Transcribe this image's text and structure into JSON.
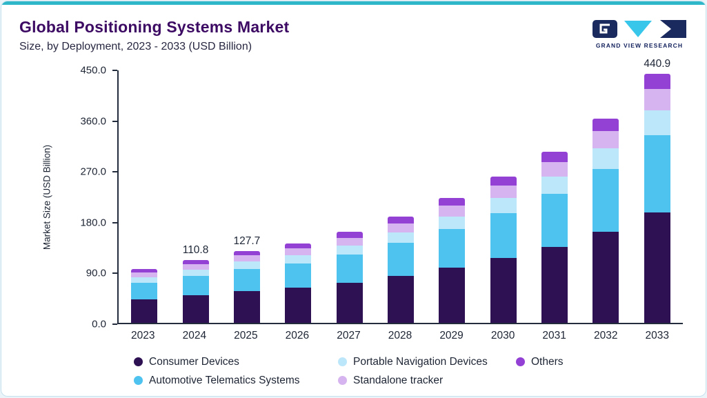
{
  "header": {
    "title": "Global Positioning Systems Market",
    "subtitle": "Size, by Deployment, 2023 - 2033 (USD Billion)"
  },
  "logo": {
    "text": "GRAND VIEW RESEARCH",
    "navy": "#1b2a5e",
    "cyan": "#38c6ea"
  },
  "chart_data": {
    "type": "bar",
    "stacked": true,
    "title": "Global Positioning Systems Market Size, by Deployment, 2023 - 2033 (USD Billion)",
    "xlabel": "",
    "ylabel": "Market Size (USD Billion)",
    "ylim": [
      0,
      450
    ],
    "grid": false,
    "legend_position": "bottom",
    "yticks": [
      0,
      90,
      180,
      270,
      360,
      450
    ],
    "ytick_labels": [
      "0.0",
      "90.0",
      "180.0",
      "270.0",
      "360.0",
      "450.0"
    ],
    "categories": [
      "2023",
      "2024",
      "2025",
      "2026",
      "2027",
      "2028",
      "2029",
      "2030",
      "2031",
      "2032",
      "2033"
    ],
    "series": [
      {
        "name": "Consumer Devices",
        "color": "#2e1152",
        "values": [
          42.0,
          48.5,
          56.0,
          62.0,
          71.0,
          83.0,
          98.0,
          115.0,
          135.0,
          161.0,
          196.0
        ]
      },
      {
        "name": "Automotive Telematics Systems",
        "color": "#4ec3f0",
        "values": [
          29.5,
          34.5,
          39.5,
          43.5,
          50.0,
          58.5,
          68.5,
          80.0,
          93.5,
          112.0,
          136.5
        ]
      },
      {
        "name": "Portable Navigation Devices",
        "color": "#bce6f9",
        "values": [
          9.5,
          11.0,
          13.0,
          14.0,
          16.0,
          19.0,
          22.0,
          26.0,
          30.5,
          36.5,
          44.5
        ]
      },
      {
        "name": "Standalone tracker",
        "color": "#d6b4ef",
        "values": [
          8.5,
          9.8,
          11.2,
          12.5,
          14.0,
          16.0,
          19.0,
          22.5,
          26.0,
          31.0,
          37.9
        ]
      },
      {
        "name": "Others",
        "color": "#9340d5",
        "values": [
          6.5,
          7.0,
          8.0,
          8.5,
          10.0,
          11.5,
          13.5,
          15.5,
          18.0,
          21.5,
          26.0
        ]
      }
    ],
    "totals": [
      96.0,
      110.8,
      127.7,
      140.5,
      161.0,
      188.0,
      221.0,
      259.0,
      303.0,
      362.0,
      440.9
    ],
    "bar_labels": {
      "2024": "110.8",
      "2025": "127.7",
      "2033": "440.9"
    },
    "legend_order": [
      "Consumer Devices",
      "Automotive Telematics Systems",
      "Portable Navigation Devices",
      "Standalone tracker",
      "Others"
    ]
  }
}
